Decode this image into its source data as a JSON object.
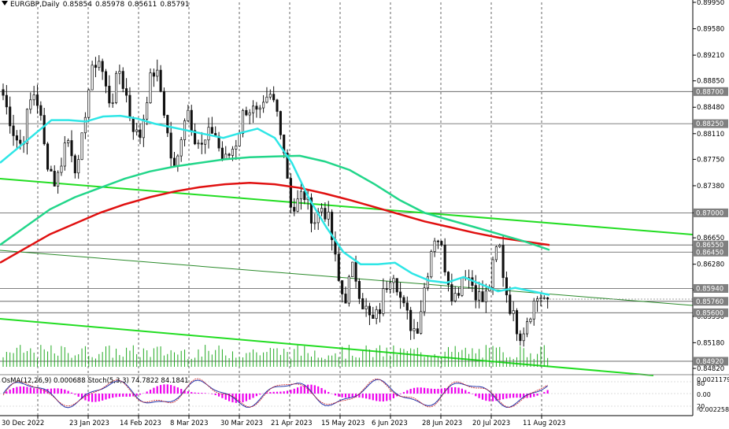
{
  "header": {
    "symbol": "EURGBP,Daily",
    "open": "0.85854",
    "high": "0.85978",
    "low": "0.85611",
    "close": "0.85791"
  },
  "price_axis": {
    "ticks": [
      "0.89950",
      "0.89580",
      "0.89210",
      "0.88850",
      "0.88480",
      "0.88110",
      "0.87750",
      "0.87380",
      "0.87000",
      "0.86650",
      "0.86280",
      "0.85920",
      "0.85550",
      "0.85180",
      "0.84820"
    ],
    "level_labels": [
      "0.88700",
      "0.88250",
      "0.87000",
      "0.86550",
      "0.86450",
      "0.85940",
      "0.85760",
      "0.85600",
      "0.84920"
    ]
  },
  "time_axis": {
    "labels": [
      "30 Dec 2022",
      "23 Jan 2023",
      "14 Feb 2023",
      "8 Mar 2023",
      "30 Mar 2023",
      "21 Apr 2023",
      "15 May 2023",
      "6 Jun 2023",
      "28 Jun 2023",
      "20 Jul 2023",
      "11 Aug 2023"
    ]
  },
  "subwindow": {
    "osma_label": "OsMA(12,26,9) 0.000688",
    "stoch_label": "Stoch(5,3,3) 74.7822 84.1841",
    "axis_labels": [
      "0.0021179",
      "80",
      "0.00",
      "20",
      "-0.0022589"
    ]
  },
  "colors": {
    "ma_fast": "#2ee6e6",
    "ma_mid": "#22d68a",
    "ma_slow": "#e01010",
    "trendline": "#22dd22",
    "osma": "#ee00ee",
    "stoch_main": "#2233aa",
    "stoch_signal": "#cc2222"
  },
  "chart_data": {
    "type": "candlestick",
    "symbol": "EURGBP",
    "timeframe": "Daily",
    "x_labels": [
      "30 Dec 2022",
      "23 Jan 2023",
      "14 Feb 2023",
      "8 Mar 2023",
      "30 Mar 2023",
      "21 Apr 2023",
      "15 May 2023",
      "6 Jun 2023",
      "28 Jun 2023",
      "20 Jul 2023",
      "11 Aug 2023"
    ],
    "ylim": [
      0.8482,
      0.8995
    ],
    "close_path": [
      0.8865,
      0.8845,
      0.883,
      0.881,
      0.88,
      0.8795,
      0.8825,
      0.885,
      0.887,
      0.886,
      0.883,
      0.879,
      0.877,
      0.8755,
      0.874,
      0.876,
      0.879,
      0.8805,
      0.8795,
      0.877,
      0.876,
      0.88,
      0.885,
      0.888,
      0.89,
      0.892,
      0.891,
      0.888,
      0.886,
      0.886,
      0.888,
      0.89,
      0.888,
      0.886,
      0.883,
      0.882,
      0.88,
      0.882,
      0.886,
      0.888,
      0.89,
      0.889,
      0.887,
      0.884,
      0.88,
      0.877,
      0.875,
      0.88,
      0.883,
      0.885,
      0.883,
      0.881,
      0.88,
      0.879,
      0.88,
      0.881,
      0.882,
      0.88,
      0.878,
      0.877,
      0.878,
      0.879,
      0.88,
      0.882,
      0.884,
      0.885,
      0.8845,
      0.884,
      0.883,
      0.884,
      0.885,
      0.886,
      0.8855,
      0.884,
      0.882,
      0.878,
      0.874,
      0.87,
      0.871,
      0.872,
      0.873,
      0.871,
      0.87,
      0.869,
      0.87,
      0.871,
      0.87,
      0.868,
      0.865,
      0.861,
      0.859,
      0.858,
      0.86,
      0.862,
      0.861,
      0.859,
      0.857,
      0.856,
      0.8545,
      0.855,
      0.856,
      0.858,
      0.86,
      0.8615,
      0.862,
      0.86,
      0.8575,
      0.856,
      0.855,
      0.854,
      0.8535,
      0.856,
      0.859,
      0.862,
      0.865,
      0.867,
      0.8665,
      0.864,
      0.862,
      0.86,
      0.858,
      0.859,
      0.861,
      0.862,
      0.861,
      0.86,
      0.859,
      0.858,
      0.8575,
      0.859,
      0.861,
      0.864,
      0.866,
      0.862,
      0.859,
      0.857,
      0.855,
      0.854,
      0.853,
      0.8545,
      0.856,
      0.857,
      0.858,
      0.8585,
      0.858,
      0.8579
    ],
    "ma_fast_path": [
      0.877,
      0.879,
      0.881,
      0.883,
      0.883,
      0.8828,
      0.8835,
      0.8836,
      0.8832,
      0.8825,
      0.882,
      0.8815,
      0.881,
      0.8805,
      0.8812,
      0.8818,
      0.8805,
      0.877,
      0.872,
      0.868,
      0.8645,
      0.8628,
      0.8628,
      0.863,
      0.8615,
      0.8605,
      0.8602,
      0.861,
      0.86,
      0.859,
      0.8595,
      0.859,
      0.8585
    ],
    "ma_mid_path": [
      0.8655,
      0.868,
      0.8705,
      0.8722,
      0.8735,
      0.8748,
      0.8758,
      0.8765,
      0.877,
      0.8775,
      0.8778,
      0.8779,
      0.878,
      0.8772,
      0.876,
      0.874,
      0.8718,
      0.87,
      0.869,
      0.868,
      0.867,
      0.866,
      0.8648
    ],
    "ma_slow_path": [
      0.863,
      0.865,
      0.867,
      0.8685,
      0.87,
      0.8712,
      0.8722,
      0.873,
      0.8736,
      0.874,
      0.8742,
      0.874,
      0.8735,
      0.8727,
      0.8718,
      0.8708,
      0.8698,
      0.8688,
      0.868,
      0.8672,
      0.8665,
      0.866,
      0.8655
    ],
    "horizontal_levels": [
      0.887,
      0.8825,
      0.87,
      0.8655,
      0.8645,
      0.8594,
      0.8576,
      0.856,
      0.8492
    ],
    "current_price": 0.85791,
    "series": [
      {
        "name": "OsMA(12,26,9)",
        "last": 0.000688
      },
      {
        "name": "Stoch(5,3,3)",
        "main": 74.7822,
        "signal": 84.1841
      }
    ]
  }
}
